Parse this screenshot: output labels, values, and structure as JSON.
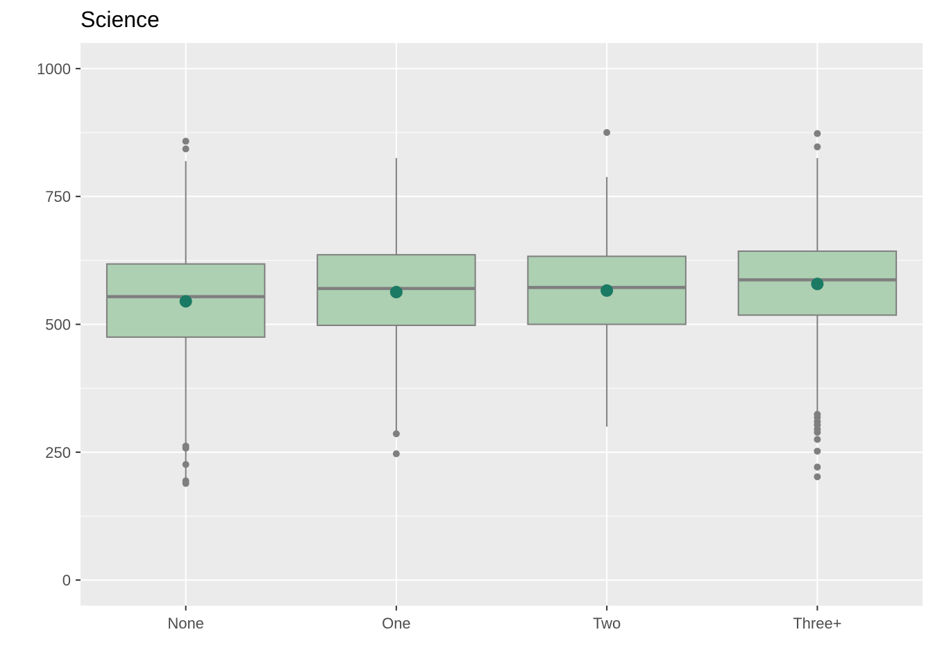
{
  "chart_data": {
    "type": "box",
    "title": "Science",
    "xlabel": "",
    "ylabel": "",
    "categories": [
      "None",
      "One",
      "Two",
      "Three+"
    ],
    "ylim": [
      -50,
      1050
    ],
    "yticks": [
      0,
      250,
      500,
      750,
      1000
    ],
    "ytick_labels": [
      "0",
      "250",
      "500",
      "750",
      "1000"
    ],
    "grid": true,
    "boxes": [
      {
        "category": "None",
        "whisker_low": 190,
        "q1": 475,
        "median": 554,
        "q3": 618,
        "whisker_high": 819,
        "mean": 545,
        "outliers": [
          858,
          843,
          262,
          258,
          226,
          194,
          189
        ]
      },
      {
        "category": "One",
        "whisker_low": 290,
        "q1": 498,
        "median": 570,
        "q3": 636,
        "whisker_high": 825,
        "mean": 563,
        "outliers": [
          286,
          247
        ]
      },
      {
        "category": "Two",
        "whisker_low": 300,
        "q1": 500,
        "median": 572,
        "q3": 633,
        "whisker_high": 788,
        "mean": 566,
        "outliers": [
          875
        ]
      },
      {
        "category": "Three+",
        "whisker_low": 326,
        "q1": 518,
        "median": 587,
        "q3": 643,
        "whisker_high": 825,
        "mean": 579,
        "outliers": [
          873,
          847,
          324,
          318,
          310,
          303,
          295,
          289,
          275,
          252,
          221,
          202
        ]
      }
    ],
    "colors": {
      "panel": "#EBEBEB",
      "grid": "#FFFFFF",
      "box_fill": "#ADCFB2",
      "box_line": "#7F7F7F",
      "outlier": "#7F7F7F",
      "mean_point": "#1B7A63"
    }
  }
}
